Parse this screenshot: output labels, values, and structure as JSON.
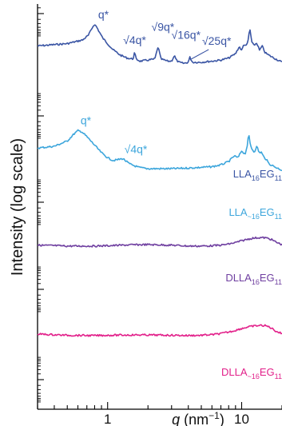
{
  "chart_data": {
    "type": "line",
    "title": "",
    "xlabel_var": "q",
    "xlabel_unit": " (nm",
    "xlabel_exp": "−1",
    "xlabel_close": ")",
    "ylabel": "Intensity (log scale)",
    "x_scale": "log",
    "y_scale": "log",
    "xlim": [
      0.3,
      20
    ],
    "x_tick_labels": [
      "1",
      "10"
    ],
    "x_ticks": [
      1,
      10
    ],
    "grid": false,
    "legend": "none",
    "series": [
      {
        "label_pre": "LLA",
        "label_sub": "16",
        "label_mid": "EG",
        "label_sub2": "11",
        "color": "#3a55a4",
        "x": [
          0.3,
          0.5,
          0.65,
          0.72,
          0.76,
          0.79,
          0.82,
          0.86,
          0.92,
          1.0,
          1.1,
          1.25,
          1.4,
          1.55,
          1.59,
          1.63,
          1.75,
          2.0,
          2.25,
          2.38,
          2.5,
          2.8,
          3.0,
          3.15,
          3.25,
          3.4,
          3.7,
          4.0,
          4.1,
          4.3,
          5.0,
          6.0,
          7.0,
          8.0,
          9.0,
          9.6,
          10.0,
          10.4,
          10.9,
          11.2,
          11.5,
          11.9,
          12.3,
          13.0,
          13.6,
          14.2,
          15.0,
          16.0,
          18.0,
          20.0
        ],
        "y": [
          4.3,
          4.7,
          5.4,
          6.5,
          8.3,
          9.7,
          9.3,
          7.6,
          5.8,
          4.7,
          3.7,
          3.0,
          2.7,
          2.6,
          3.4,
          2.6,
          2.4,
          2.5,
          2.6,
          4.2,
          2.6,
          2.4,
          2.4,
          3.0,
          2.5,
          2.3,
          2.2,
          2.3,
          2.8,
          2.3,
          2.3,
          2.4,
          2.5,
          2.7,
          3.2,
          4.2,
          3.6,
          4.6,
          4.3,
          5.5,
          8.4,
          5.0,
          4.4,
          4.8,
          3.6,
          4.3,
          3.3,
          3.0,
          2.6,
          2.3
        ]
      },
      {
        "label_pre": "LLA",
        "label_sub": "~16",
        "label_mid": "EG",
        "label_sub2": "11",
        "color": "#3da6dc",
        "x": [
          0.3,
          0.4,
          0.5,
          0.56,
          0.6,
          0.64,
          0.7,
          0.8,
          0.9,
          1.0,
          1.1,
          1.2,
          1.3,
          1.45,
          1.7,
          2.0,
          2.5,
          3.0,
          4.0,
          5.0,
          6.0,
          7.0,
          8.0,
          8.8,
          9.4,
          10.0,
          10.6,
          11.0,
          11.3,
          11.6,
          12.0,
          12.4,
          13.0,
          13.5,
          14.0,
          14.6,
          15.3,
          16.0,
          18.0,
          20.0
        ],
        "y": [
          4.2,
          4.5,
          5.5,
          7.2,
          8.2,
          7.9,
          6.5,
          4.7,
          3.5,
          2.9,
          2.6,
          2.7,
          2.8,
          2.3,
          2.0,
          1.9,
          1.9,
          1.9,
          1.95,
          2.0,
          2.05,
          2.2,
          2.5,
          3.1,
          2.9,
          3.8,
          3.3,
          4.6,
          7.2,
          4.7,
          4.0,
          3.6,
          4.5,
          3.5,
          3.6,
          3.0,
          2.7,
          2.3,
          2.0,
          1.8
        ]
      },
      {
        "label_pre": "DLLA",
        "label_sub": "16",
        "label_mid": "EG",
        "label_sub2": "11",
        "color": "#6f3fa0",
        "x": [
          0.3,
          0.5,
          0.8,
          1.0,
          1.5,
          2.0,
          3.0,
          4.0,
          5.0,
          6.0,
          7.0,
          8.0,
          9.0,
          10.0,
          11.0,
          12.0,
          13.0,
          14.0,
          15.0,
          16.0,
          17.0,
          18.0,
          20.0
        ],
        "y": [
          2.1,
          1.95,
          1.95,
          2.0,
          2.15,
          2.2,
          2.1,
          1.95,
          1.95,
          2.0,
          2.1,
          2.3,
          2.6,
          3.0,
          3.4,
          3.7,
          3.85,
          3.9,
          3.85,
          3.6,
          3.2,
          2.7,
          2.2
        ]
      },
      {
        "label_pre": "DLLA",
        "label_sub": "~16",
        "label_mid": "EG",
        "label_sub2": "11",
        "color": "#e2208a",
        "x": [
          0.3,
          0.5,
          0.8,
          1.0,
          1.5,
          2.0,
          3.0,
          4.0,
          5.0,
          6.0,
          7.0,
          8.0,
          9.0,
          10.0,
          11.0,
          12.0,
          13.0,
          14.0,
          15.0,
          16.0,
          17.0,
          18.0,
          20.0
        ],
        "y": [
          2.2,
          2.0,
          1.95,
          2.0,
          2.05,
          2.05,
          2.0,
          1.95,
          2.0,
          2.1,
          2.3,
          2.6,
          3.0,
          3.5,
          3.9,
          4.2,
          4.4,
          4.5,
          4.4,
          4.0,
          3.4,
          2.8,
          2.3
        ]
      }
    ],
    "annotations": [
      {
        "text": "q*",
        "series": 0,
        "q": 0.79
      },
      {
        "text": "√4q*",
        "series": 0,
        "q": 1.59
      },
      {
        "text": "√9q*",
        "series": 0,
        "q": 2.38
      },
      {
        "text": "√16q*",
        "series": 0,
        "q": 3.17
      },
      {
        "text": "√25q*",
        "series": 0,
        "q": 3.97
      },
      {
        "text": "q*",
        "series": 1,
        "q": 0.6
      },
      {
        "text": "√4q*",
        "series": 1,
        "q": 1.2
      }
    ]
  }
}
